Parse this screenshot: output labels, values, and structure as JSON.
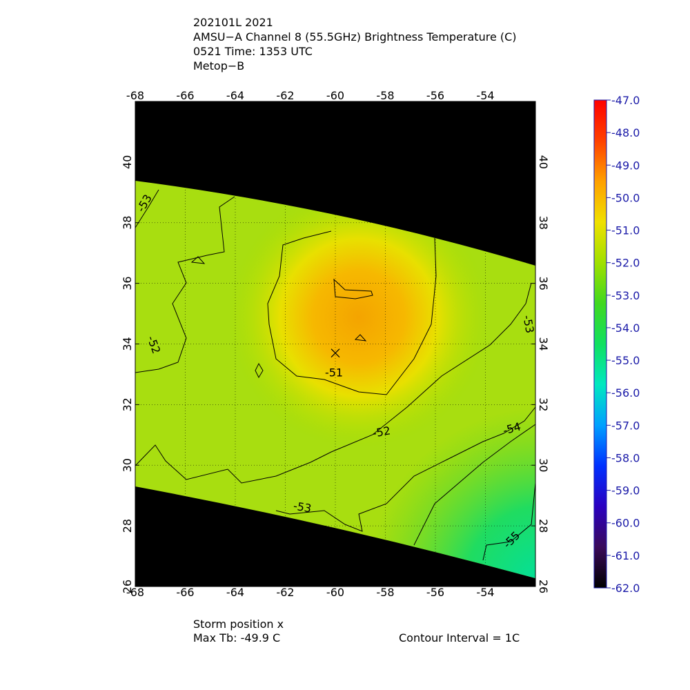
{
  "chart_data": {
    "type": "map",
    "title": [
      "202101L 2021",
      "AMSU−A Channel 8 (55.5GHz) Brightness Temperature (C)",
      "0521 Time: 1353 UTC",
      "Metop−B"
    ],
    "xlim": [
      -68,
      -52
    ],
    "xticks": [
      -68,
      -66,
      -64,
      -62,
      -60,
      -58,
      -56,
      -54
    ],
    "ylim": [
      26,
      42
    ],
    "yticks": [
      26,
      28,
      30,
      32,
      34,
      36,
      38,
      40
    ],
    "grid": true,
    "storm_position": {
      "lon": -60,
      "lat": 33.7
    },
    "contour_labels": [
      -53,
      -52,
      -51,
      -52,
      -53,
      -53,
      -54,
      -55
    ],
    "colorbar": {
      "lim": [
        -62,
        -47
      ],
      "colors": [
        "#000000",
        "#3a0a5a",
        "#2a00c0",
        "#0030ff",
        "#00a0ff",
        "#00e8c0",
        "#10e060",
        "#40d820",
        "#a0e000",
        "#f0e000",
        "#ffa000",
        "#ff4000",
        "#ff0000"
      ],
      "ticks": [
        {
          "value": -47,
          "label": "-47.0"
        },
        {
          "value": -48,
          "label": "-48.0"
        },
        {
          "value": -49,
          "label": "-49.0"
        },
        {
          "value": -50,
          "label": "-50.0"
        },
        {
          "value": -51,
          "label": "-51.0"
        },
        {
          "value": -52,
          "label": "-52.0"
        },
        {
          "value": -53,
          "label": "-53.0"
        },
        {
          "value": -54,
          "label": "-54.0"
        },
        {
          "value": -55,
          "label": "-55.0"
        },
        {
          "value": -56,
          "label": "-56.0"
        },
        {
          "value": -57,
          "label": "-57.0"
        },
        {
          "value": -58,
          "label": "-58.0"
        },
        {
          "value": -59,
          "label": "-59.0"
        },
        {
          "value": -60,
          "label": "-60.0"
        },
        {
          "value": -61,
          "label": "-61.0"
        },
        {
          "value": -62,
          "label": "-62.0"
        }
      ]
    },
    "footer": {
      "storm": "Storm position x",
      "max_tb": "Max Tb: -49.9    C",
      "interval": "Contour Interval = 1C"
    }
  }
}
